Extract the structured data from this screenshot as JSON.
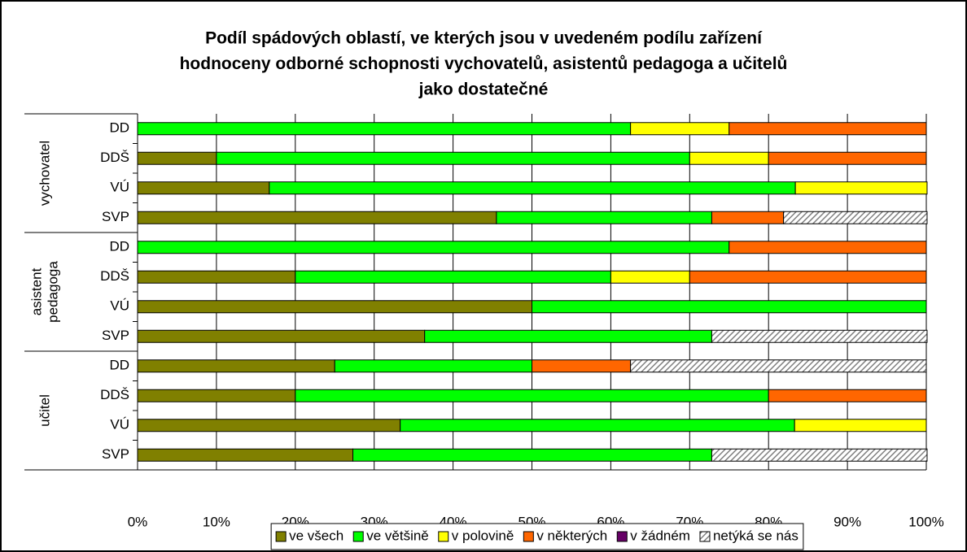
{
  "chart_data": {
    "type": "stacked_barh",
    "title": [
      "Podíl spádových oblastí, ve kterých jsou v uvedeném podílu zařízení",
      "hodnoceny odborné schopnosti vychovatelů, asistentů pedagoga a učitelů",
      "jako dostatečné"
    ],
    "groups": [
      [
        "vychovatel"
      ],
      [
        "asistent",
        "pedagoga"
      ],
      [
        "učitel"
      ]
    ],
    "categories": [
      "DD",
      "DDŠ",
      "VÚ",
      "SVP",
      "DD",
      "DDŠ",
      "VÚ",
      "SVP",
      "DD",
      "DDŠ",
      "VÚ",
      "SVP"
    ],
    "series": [
      {
        "name": "ve všech",
        "color": "#808000",
        "values": [
          0,
          10,
          16.7,
          45.5,
          0,
          20,
          50,
          36.4,
          25,
          20,
          33.3,
          27.3
        ]
      },
      {
        "name": "ve většině",
        "color": "#00ff00",
        "values": [
          62.5,
          60,
          66.7,
          27.3,
          75,
          40,
          50,
          36.4,
          25,
          60,
          50,
          45.5
        ]
      },
      {
        "name": "v polovině",
        "color": "#ffff00",
        "values": [
          12.5,
          10,
          16.7,
          0,
          0,
          10,
          0,
          0,
          0,
          0,
          16.7,
          0
        ]
      },
      {
        "name": "v některých",
        "color": "#ff6600",
        "values": [
          25,
          20,
          0,
          9.1,
          25,
          30,
          0,
          0,
          12.5,
          20,
          0,
          0
        ]
      },
      {
        "name": "v žádném",
        "color": "#660066",
        "values": [
          0,
          0,
          0,
          0,
          0,
          0,
          0,
          0,
          0,
          0,
          0,
          0
        ]
      },
      {
        "name": "netýká se nás",
        "color": "#c0c0c0",
        "pattern": "hatch",
        "values": [
          0,
          0,
          0,
          18.2,
          0,
          0,
          0,
          27.3,
          37.5,
          0,
          0,
          27.3
        ]
      }
    ],
    "xlim": [
      0,
      100
    ],
    "xticks": [
      {
        "value": 0,
        "label": "0%"
      },
      {
        "value": 10,
        "label": "10%"
      },
      {
        "value": 20,
        "label": "20%"
      },
      {
        "value": 30,
        "label": "30%"
      },
      {
        "value": 40,
        "label": "40%"
      },
      {
        "value": 50,
        "label": "50%"
      },
      {
        "value": 60,
        "label": "60%"
      },
      {
        "value": 70,
        "label": "70%"
      },
      {
        "value": 80,
        "label": "80%"
      },
      {
        "value": 90,
        "label": "90%"
      },
      {
        "value": 100,
        "label": "100%"
      }
    ],
    "grid": true,
    "legend": "bottom"
  }
}
